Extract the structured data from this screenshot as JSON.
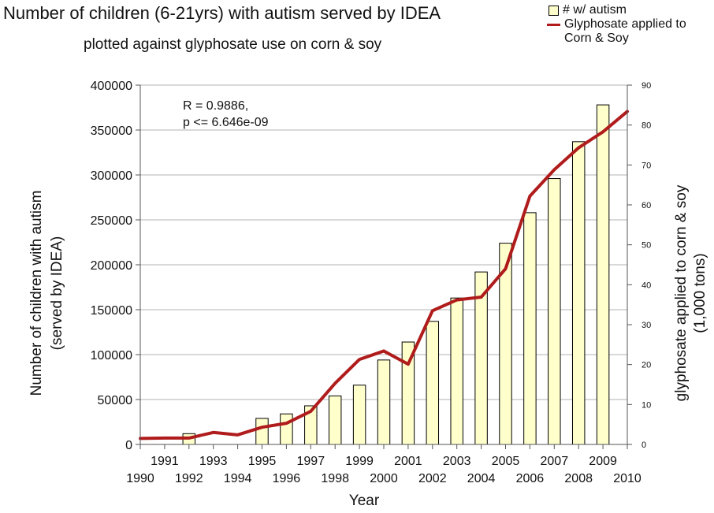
{
  "chart_data": {
    "type": "bar",
    "title": "Number of children (6-21yrs) with autism served by IDEA",
    "subtitle": "plotted against glyphosate use on corn & soy",
    "xlabel": "Year",
    "ylabel_lines": [
      "Number of children with autism",
      "(served by IDEA)"
    ],
    "y2label_lines": [
      "glyphosate applied to corn & soy",
      "(1,000 tons)"
    ],
    "ylim": [
      0,
      400000
    ],
    "y2lim": [
      0,
      90
    ],
    "y_ticks": [
      "0",
      "50000",
      "100000",
      "150000",
      "200000",
      "250000",
      "300000",
      "350000",
      "400000"
    ],
    "y2_ticks": [
      "0",
      "10",
      "20",
      "30",
      "40",
      "50",
      "60",
      "70",
      "80",
      "90"
    ],
    "x_ticks_upper": [
      "1991",
      "1993",
      "1995",
      "1997",
      "1999",
      "2001",
      "2003",
      "2005",
      "2007",
      "2009"
    ],
    "x_ticks_lower": [
      "1990",
      "1992",
      "1994",
      "1996",
      "1998",
      "2000",
      "2002",
      "2004",
      "2006",
      "2008",
      "2010"
    ],
    "annotation_lines": [
      "R = 0.9886,",
      "p <= 6.646e-09"
    ],
    "legend": {
      "bar_label": "# w/ autism",
      "line_label_lines": [
        "Glyphosate applied to",
        "Corn & Soy"
      ]
    },
    "colors": {
      "bar_fill": "#ffffcc",
      "bar_stroke": "#000000",
      "line": "#b01c1c",
      "grid": "#b3b3b3"
    },
    "series": [
      {
        "name": "# w/ autism",
        "type": "bar",
        "x": [
          1992,
          1993,
          1994,
          1995,
          1996,
          1997,
          1998,
          1999,
          2000,
          2001,
          2002,
          2003,
          2004,
          2005,
          2006,
          2007,
          2008,
          2009
        ],
        "values": [
          12000,
          0,
          0,
          29000,
          34000,
          43000,
          54000,
          66000,
          94000,
          114000,
          137000,
          163000,
          192000,
          224000,
          258000,
          296000,
          337000,
          378000
        ]
      },
      {
        "name": "Glyphosate applied to Corn & Soy",
        "type": "line",
        "axis": "right",
        "x": [
          1990,
          1991,
          1992,
          1993,
          1994,
          1995,
          1996,
          1997,
          1998,
          1999,
          2000,
          2001,
          2002,
          2003,
          2004,
          2005,
          2006,
          2007,
          2008,
          2009,
          2010
        ],
        "values": [
          1.5,
          1.6,
          1.6,
          3.0,
          2.4,
          4.3,
          5.3,
          8.3,
          15.3,
          21.3,
          23.4,
          20.1,
          33.5,
          36.2,
          36.9,
          44.0,
          62.2,
          68.8,
          74.3,
          78.3,
          83.4
        ]
      }
    ]
  }
}
